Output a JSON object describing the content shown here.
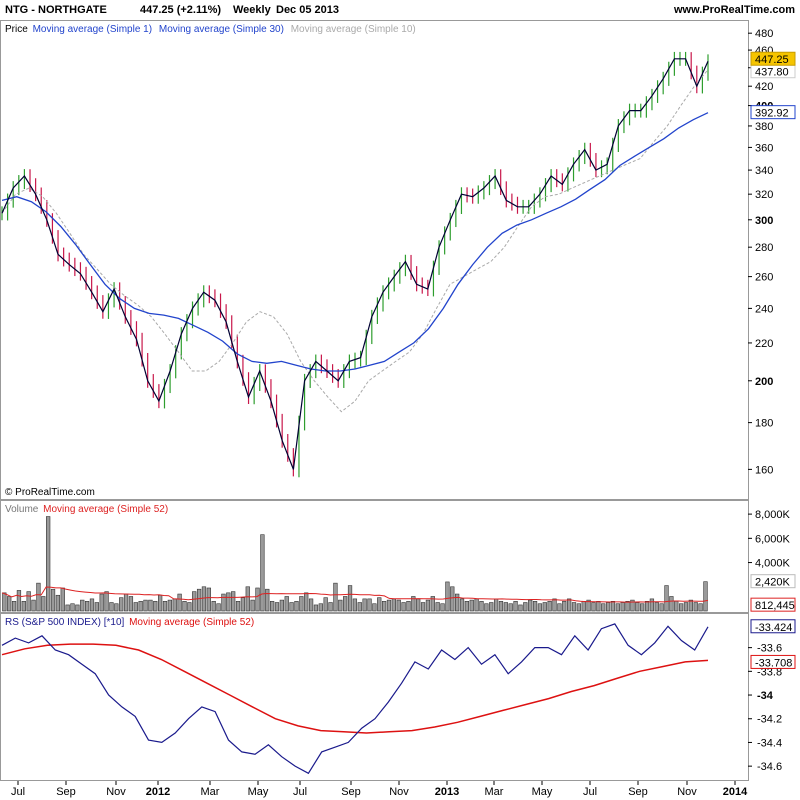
{
  "header": {
    "symbol": "NTG - NORTHGATE",
    "price_change": "447.25 (+2.11%)",
    "period": "Weekly",
    "date": "Dec 05 2013",
    "site": "www.ProRealTime.com"
  },
  "watermark": "© ProRealTime.com",
  "colors": {
    "up": "#2e9e2e",
    "down": "#c8174a",
    "price_line": "#000033",
    "ma30": "#2244cc",
    "ma10": "#aaaaaa",
    "volume_bar": "#9a9a9a",
    "volume_ma": "#dd2222",
    "rs_line": "#1a1a8c",
    "rs_ma": "#dd1111",
    "last_price_bg": "#f5c400"
  },
  "panels": {
    "price": {
      "legend": {
        "price": "Price",
        "ma1": "Moving average (Simple 1)",
        "ma30": "Moving average (Simple 30)",
        "ma10": "Moving average (Simple 10)"
      },
      "yticks": [
        "480",
        "460",
        "440",
        "420",
        "400",
        "380",
        "360",
        "340",
        "320",
        "300",
        "280",
        "260",
        "240",
        "220",
        "200",
        "180",
        "160"
      ],
      "tags": {
        "last": "447.25",
        "ma10": "437.80",
        "ma30": "392.92"
      }
    },
    "volume": {
      "legend": {
        "name": "Volume",
        "ma": "Moving average (Simple 52)"
      },
      "yticks": [
        "8,000K",
        "6,000K",
        "4,000K"
      ],
      "tags": {
        "last": "2,420K",
        "ma": "812,445"
      }
    },
    "rs": {
      "legend": {
        "name": "RS (S&P 500 INDEX) [*10]",
        "ma": "Moving average (Simple 52)"
      },
      "yticks": [
        "-33.6",
        "-33.8",
        "-34",
        "-34.2",
        "-34.4",
        "-34.6"
      ],
      "tags": {
        "last": "-33.424",
        "ma": "-33.708"
      }
    }
  },
  "xaxis": {
    "ticks": [
      {
        "label": "Jul",
        "year": false
      },
      {
        "label": "Sep",
        "year": false
      },
      {
        "label": "Nov",
        "year": false
      },
      {
        "label": "2012",
        "year": true
      },
      {
        "label": "Mar",
        "year": false
      },
      {
        "label": "May",
        "year": false
      },
      {
        "label": "Jul",
        "year": false
      },
      {
        "label": "Sep",
        "year": false
      },
      {
        "label": "Nov",
        "year": false
      },
      {
        "label": "2013",
        "year": true
      },
      {
        "label": "Mar",
        "year": false
      },
      {
        "label": "May",
        "year": false
      },
      {
        "label": "Jul",
        "year": false
      },
      {
        "label": "Sep",
        "year": false
      },
      {
        "label": "Nov",
        "year": false
      },
      {
        "label": "2014",
        "year": true
      }
    ]
  },
  "chart_data": [
    {
      "type": "line",
      "panel": "price",
      "scale": "log",
      "ylim": [
        150,
        490
      ],
      "x_range": [
        "2011-06",
        "2013-12"
      ],
      "series": [
        {
          "name": "Moving average (Simple 1)",
          "values": [
            305,
            325,
            335,
            320,
            300,
            275,
            268,
            262,
            250,
            238,
            252,
            235,
            222,
            200,
            190,
            205,
            225,
            240,
            250,
            245,
            232,
            210,
            192,
            205,
            190,
            172,
            160,
            200,
            210,
            205,
            200,
            210,
            212,
            235,
            250,
            260,
            270,
            255,
            252,
            280,
            300,
            320,
            318,
            325,
            335,
            315,
            310,
            310,
            320,
            335,
            328,
            345,
            358,
            340,
            345,
            380,
            395,
            395,
            410,
            428,
            450,
            450,
            420,
            447.25
          ]
        },
        {
          "name": "Moving average (Simple 30)",
          "values": [
            315,
            318,
            314,
            306,
            295,
            282,
            268,
            255,
            246,
            240,
            237,
            236,
            234,
            230,
            226,
            221,
            214,
            210,
            209,
            210,
            208,
            206,
            205,
            205,
            206,
            208,
            210,
            215,
            220,
            228,
            240,
            255,
            268,
            280,
            290,
            296,
            300,
            305,
            310,
            316,
            324,
            332,
            344,
            352,
            360,
            368,
            378,
            386,
            392.92
          ]
        },
        {
          "name": "Moving average (Simple 10)",
          "values": [
            305,
            320,
            325,
            318,
            305,
            290,
            275,
            265,
            255,
            248,
            242,
            235,
            225,
            215,
            205,
            205,
            210,
            220,
            232,
            238,
            235,
            225,
            210,
            200,
            192,
            185,
            190,
            200,
            205,
            210,
            215,
            225,
            240,
            255,
            260,
            265,
            270,
            280,
            295,
            310,
            318,
            320,
            325,
            330,
            335,
            340,
            345,
            350,
            365,
            380,
            400,
            420,
            437.8
          ]
        }
      ]
    },
    {
      "type": "bar",
      "panel": "volume",
      "ylim": [
        0,
        9000
      ],
      "unit": "K",
      "values_k": [
        1500,
        1200,
        800,
        1700,
        800,
        1600,
        900,
        2300,
        1200,
        7800,
        1800,
        1300,
        1900,
        500,
        600,
        500,
        900,
        800,
        1000,
        700,
        1400,
        1600,
        700,
        600,
        1100,
        1400,
        1200,
        700,
        800,
        900,
        900,
        800,
        1300,
        800,
        900,
        1000,
        1400,
        800,
        700,
        1600,
        1800,
        2000,
        1900,
        800,
        600,
        1400,
        1500,
        1600,
        800,
        1100,
        2000,
        900,
        1900,
        6300,
        1800,
        800,
        700,
        900,
        1200,
        700,
        800,
        1200,
        1500,
        1000,
        500,
        600,
        1100,
        700,
        2300,
        900,
        1200,
        2100,
        1000,
        700,
        1000,
        1000,
        600,
        1100,
        800,
        900,
        1000,
        900,
        700,
        800,
        1200,
        1000,
        700,
        900,
        1200,
        700,
        600,
        2400,
        2000,
        1400,
        1000,
        800,
        900,
        1000,
        800,
        600,
        700,
        1000,
        800,
        700,
        600,
        800,
        500,
        700,
        900,
        800,
        600,
        700,
        800,
        1000,
        600,
        800,
        1000,
        700,
        600,
        800,
        900,
        700,
        800,
        600,
        700,
        800,
        600,
        700,
        800,
        900,
        700,
        600,
        800,
        1000,
        700,
        600,
        2100,
        1200,
        800,
        600,
        700,
        900,
        700,
        600,
        2420
      ],
      "ma_label": "Moving average (Simple 52)",
      "ma_last": 812.445
    },
    {
      "type": "line",
      "panel": "rs",
      "ylim": [
        -34.7,
        -33.35
      ],
      "series": [
        {
          "name": "RS (S&P 500 INDEX) [*10]",
          "values": [
            -33.58,
            -33.52,
            -33.56,
            -33.5,
            -33.62,
            -33.66,
            -33.74,
            -33.82,
            -34.0,
            -34.1,
            -34.18,
            -34.38,
            -34.4,
            -34.32,
            -34.2,
            -34.1,
            -34.14,
            -34.38,
            -34.48,
            -34.5,
            -34.42,
            -34.52,
            -34.6,
            -34.66,
            -34.48,
            -34.44,
            -34.4,
            -34.28,
            -34.2,
            -34.06,
            -33.9,
            -33.72,
            -33.78,
            -33.62,
            -33.7,
            -33.6,
            -33.74,
            -33.66,
            -33.82,
            -33.72,
            -33.6,
            -33.6,
            -33.66,
            -33.5,
            -33.62,
            -33.44,
            -33.4,
            -33.58,
            -33.66,
            -33.56,
            -33.42,
            -33.54,
            -33.62,
            -33.424
          ]
        },
        {
          "name": "Moving average (Simple 52)",
          "values": [
            -33.66,
            -33.61,
            -33.58,
            -33.57,
            -33.57,
            -33.58,
            -33.62,
            -33.7,
            -33.8,
            -33.9,
            -34.0,
            -34.1,
            -34.2,
            -34.26,
            -34.3,
            -34.31,
            -34.32,
            -34.31,
            -34.3,
            -34.27,
            -34.23,
            -34.18,
            -34.13,
            -34.08,
            -34.03,
            -33.97,
            -33.92,
            -33.86,
            -33.8,
            -33.76,
            -33.72,
            -33.708
          ]
        }
      ]
    }
  ]
}
